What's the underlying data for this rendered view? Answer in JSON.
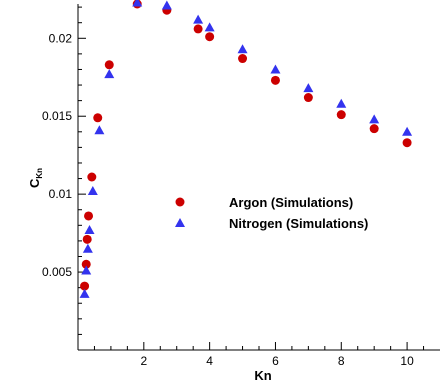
{
  "chart_data": {
    "type": "scatter",
    "xlabel": "Kn",
    "ylabel": "C",
    "ylabel_sub": "Kn",
    "xlim": [
      0,
      11
    ],
    "ylim": [
      0,
      0.0222
    ],
    "xticks": [
      2,
      4,
      6,
      8,
      10
    ],
    "xtick_labels": [
      "2",
      "4",
      "6",
      "8",
      "10"
    ],
    "xminor_step": 0.5,
    "yticks": [
      0.005,
      0.01,
      0.015,
      0.02
    ],
    "ytick_labels": [
      "0.005",
      "0.01",
      "0.015",
      "0.02"
    ],
    "yminor_step": 0.001,
    "grid": false,
    "legend_position": "center-right",
    "series": [
      {
        "name": "Argon (Simulations)",
        "marker": "circle",
        "color": "#cc0000",
        "points": [
          [
            0.2,
            0.0041
          ],
          [
            0.25,
            0.0055
          ],
          [
            0.28,
            0.0071
          ],
          [
            0.32,
            0.0086
          ],
          [
            0.42,
            0.0111
          ],
          [
            0.6,
            0.0149
          ],
          [
            0.95,
            0.0183
          ],
          [
            1.8,
            0.0222
          ],
          [
            2.7,
            0.0218
          ],
          [
            3.65,
            0.0206
          ],
          [
            4.0,
            0.0201
          ],
          [
            5.0,
            0.0187
          ],
          [
            6.0,
            0.0173
          ],
          [
            7.0,
            0.0162
          ],
          [
            8.0,
            0.0151
          ],
          [
            9.0,
            0.0142
          ],
          [
            10.0,
            0.0133
          ]
        ]
      },
      {
        "name": "Nitrogen (Simulations)",
        "marker": "triangle",
        "color": "#3333ee",
        "points": [
          [
            0.2,
            0.0036
          ],
          [
            0.25,
            0.0051
          ],
          [
            0.3,
            0.0065
          ],
          [
            0.35,
            0.0077
          ],
          [
            0.45,
            0.0102
          ],
          [
            0.65,
            0.0141
          ],
          [
            0.95,
            0.0177
          ],
          [
            1.8,
            0.0223
          ],
          [
            2.7,
            0.0221
          ],
          [
            3.65,
            0.0212
          ],
          [
            4.0,
            0.0207
          ],
          [
            5.0,
            0.0193
          ],
          [
            6.0,
            0.018
          ],
          [
            7.0,
            0.0168
          ],
          [
            8.0,
            0.0158
          ],
          [
            9.0,
            0.0148
          ],
          [
            10.0,
            0.014
          ]
        ]
      }
    ]
  }
}
